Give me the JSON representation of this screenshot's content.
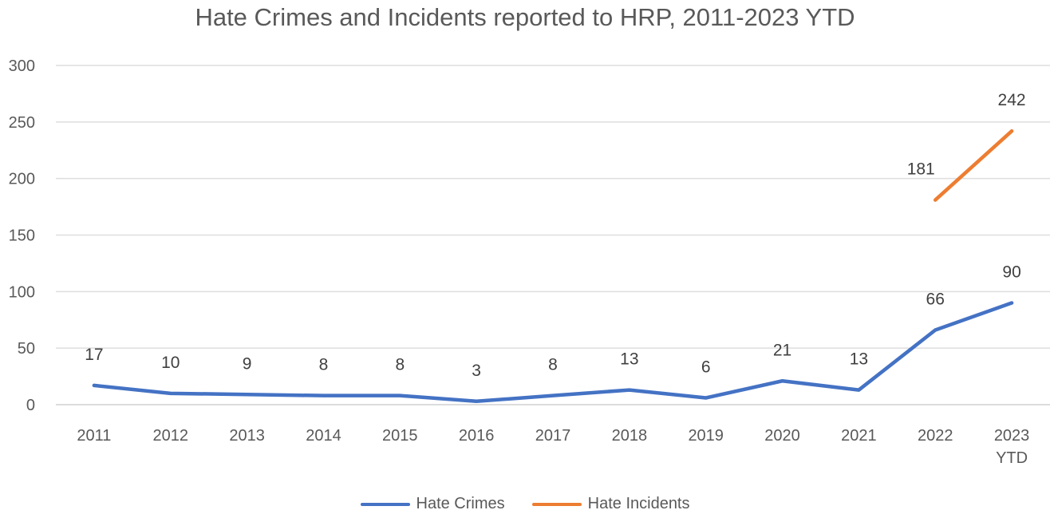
{
  "chart_data": {
    "type": "line",
    "title": "Hate Crimes and Incidents reported to HRP, 2011-2023 YTD",
    "xlabel": "",
    "ylabel": "",
    "categories": [
      [
        "2011"
      ],
      [
        "2012"
      ],
      [
        "2013"
      ],
      [
        "2014"
      ],
      [
        "2015"
      ],
      [
        "2016"
      ],
      [
        "2017"
      ],
      [
        "2018"
      ],
      [
        "2019"
      ],
      [
        "2020"
      ],
      [
        "2021"
      ],
      [
        "2022"
      ],
      [
        "2023",
        "YTD"
      ]
    ],
    "ylim": [
      0,
      300
    ],
    "yticks": [
      0,
      50,
      100,
      150,
      200,
      250,
      300
    ],
    "grid": true,
    "legend_position": "bottom",
    "series": [
      {
        "name": "Hate Crimes",
        "color": "#4472C4",
        "values": [
          17,
          10,
          9,
          8,
          8,
          3,
          8,
          13,
          6,
          21,
          13,
          66,
          90
        ]
      },
      {
        "name": "Hate Incidents",
        "color": "#ED7D31",
        "values": [
          null,
          null,
          null,
          null,
          null,
          null,
          null,
          null,
          null,
          null,
          null,
          181,
          242
        ]
      }
    ]
  }
}
